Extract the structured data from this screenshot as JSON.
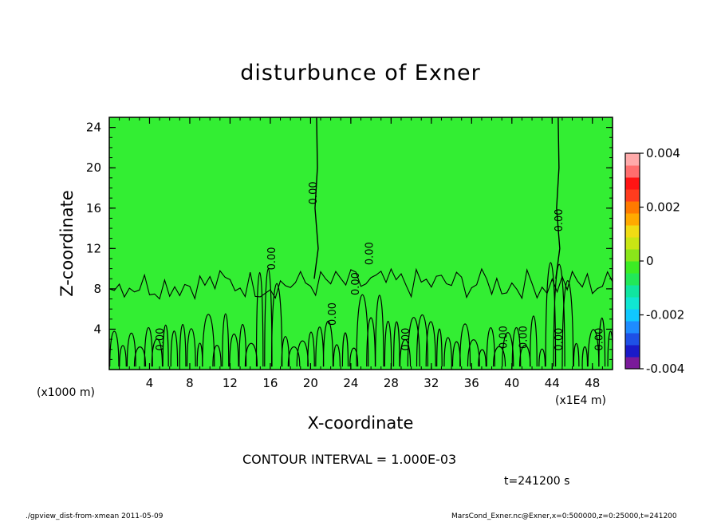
{
  "title": "disturbunce of Exner",
  "contour_interval_text": "CONTOUR INTERVAL = 1.000E-03",
  "time_text": "t=241200 s",
  "footer": {
    "left": "./gpview_dist-from-xmean  2011-05-09",
    "right": "MarsCond_Exner.nc@Exner,x=0:500000,z=0:25000,t=241200"
  },
  "chart_data": {
    "type": "heatmap",
    "title": "disturbunce of Exner",
    "xlabel": "X-coordinate",
    "ylabel": "Z-coordinate",
    "x_unit_label": "(x1E4 m)",
    "y_unit_label": "(x1000 m)",
    "xlim": [
      0,
      50
    ],
    "ylim": [
      0,
      25
    ],
    "x_ticks": [
      4,
      8,
      12,
      16,
      20,
      24,
      28,
      32,
      36,
      40,
      44,
      48
    ],
    "y_ticks": [
      4,
      8,
      12,
      16,
      20,
      24
    ],
    "field_background_value": 0,
    "background_color": "#33ee33",
    "contour_label": "0.00",
    "zero_contour_x": [
      20.6,
      44.6
    ],
    "colorbar": {
      "range": [
        -0.004,
        0.004
      ],
      "tick_labels": [
        "0.004",
        "0.002",
        "0",
        "-0.002",
        "-0.004"
      ],
      "tick_values": [
        0.004,
        0.002,
        0,
        -0.002,
        -0.004
      ],
      "colors": [
        "#7a1a9a",
        "#1a1ac8",
        "#1e50e6",
        "#1e8cff",
        "#10c8ff",
        "#10e6d2",
        "#10e6a0",
        "#22e858",
        "#3cec24",
        "#8ae61a",
        "#c8e614",
        "#f0dc14",
        "#ffaa00",
        "#ff7a00",
        "#ff3c1e",
        "#ff1414",
        "#ff6e6e",
        "#ffaaaa"
      ]
    }
  }
}
